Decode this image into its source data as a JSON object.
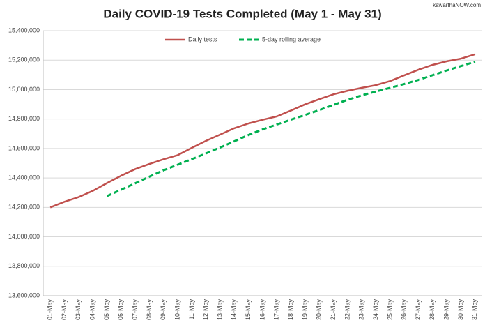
{
  "chart_data": {
    "type": "line",
    "title": "Daily COVID-19 Tests Completed (May 1 - May 31)",
    "watermark": "kawarthaNOW.com",
    "categories": [
      "01-May",
      "02-May",
      "03-May",
      "04-May",
      "05-May",
      "06-May",
      "07-May",
      "08-May",
      "09-May",
      "10-May",
      "11-May",
      "12-May",
      "13-May",
      "14-May",
      "15-May",
      "16-May",
      "17-May",
      "18-May",
      "19-May",
      "20-May",
      "21-May",
      "22-May",
      "23-May",
      "24-May",
      "25-May",
      "26-May",
      "27-May",
      "28-May",
      "29-May",
      "30-May",
      "31-May"
    ],
    "series": [
      {
        "name": "Daily tests",
        "color": "#c0504d",
        "dash": false,
        "values": [
          14200000,
          14238000,
          14270000,
          14312000,
          14365000,
          14415000,
          14460000,
          14495000,
          14527000,
          14555000,
          14605000,
          14652000,
          14695000,
          14738000,
          14770000,
          14795000,
          14818000,
          14858000,
          14900000,
          14935000,
          14968000,
          14992000,
          15012000,
          15030000,
          15058000,
          15097000,
          15135000,
          15168000,
          15192000,
          15210000,
          15240000
        ]
      },
      {
        "name": "5-day rolling average",
        "color": "#00b050",
        "dash": true,
        "values": [
          null,
          null,
          null,
          null,
          14277000,
          14320000,
          14364000,
          14409000,
          14452000,
          14490000,
          14528000,
          14567000,
          14607000,
          14649000,
          14692000,
          14730000,
          14763000,
          14796000,
          14828000,
          14861000,
          14896000,
          14931000,
          14961000,
          14987000,
          15012000,
          15038000,
          15066000,
          15098000,
          15130000,
          15160000,
          15189000
        ]
      }
    ],
    "ylim": [
      13600000,
      15400000
    ],
    "yticks": [
      {
        "value": 13600000,
        "label": "13,600,000"
      },
      {
        "value": 13800000,
        "label": "13,800,000"
      },
      {
        "value": 14000000,
        "label": "14,000,000"
      },
      {
        "value": 14200000,
        "label": "14,200,000"
      },
      {
        "value": 14400000,
        "label": "14,400,000"
      },
      {
        "value": 14600000,
        "label": "14,600,000"
      },
      {
        "value": 14800000,
        "label": "14,800,000"
      },
      {
        "value": 15000000,
        "label": "15,000,000"
      },
      {
        "value": 15200000,
        "label": "15,200,000"
      },
      {
        "value": 15400000,
        "label": "15,400,000"
      }
    ],
    "grid": true,
    "legend": "top"
  }
}
